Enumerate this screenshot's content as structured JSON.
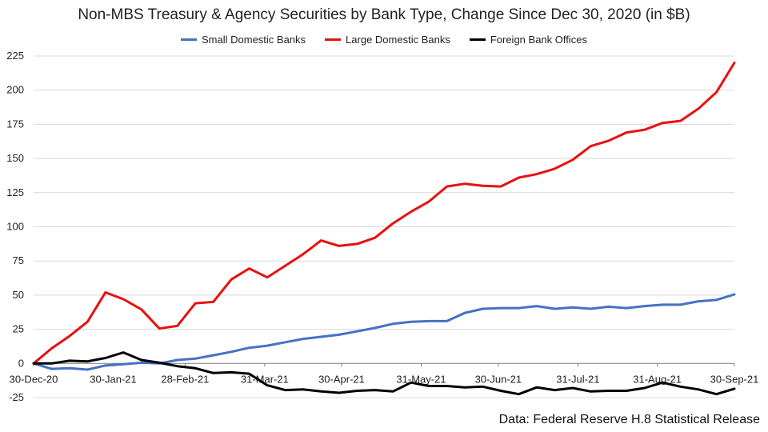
{
  "chart_data": {
    "type": "line",
    "title": "Non-MBS Treasury & Agency Securities by Bank Type, Change Since Dec 30, 2020 (in $B)",
    "xlabel": "",
    "ylabel": "",
    "ylim": [
      -25,
      225
    ],
    "yticks": [
      -25,
      0,
      25,
      50,
      75,
      100,
      125,
      150,
      175,
      200,
      225
    ],
    "x_tick_labels": [
      "30-Dec-20",
      "30-Jan-21",
      "28-Feb-21",
      "31-Mar-21",
      "30-Apr-21",
      "31-May-21",
      "30-Jun-21",
      "31-Jul-21",
      "31-Aug-21",
      "30-Sep-21"
    ],
    "x_tick_index": [
      0,
      4.43,
      8.43,
      12.86,
      17.14,
      21.57,
      25.86,
      30.29,
      34.71,
      39
    ],
    "n_points": 40,
    "grid": true,
    "legend_position": "top-center",
    "source": "Data: Federal Reserve H.8 Statistical Release",
    "series": [
      {
        "name": "Small Domestic Banks",
        "color": "#4472C4",
        "values": [
          0,
          -4,
          -3.5,
          -4.5,
          -1.5,
          -0.5,
          0.5,
          0,
          2.5,
          3.5,
          6,
          8.5,
          11.5,
          13,
          15.5,
          18,
          19.5,
          21,
          23.5,
          26,
          29,
          30.5,
          31,
          31,
          37,
          40,
          40.5,
          40.5,
          42,
          40,
          41,
          40,
          41.5,
          40.5,
          42,
          43,
          43,
          45.5,
          46.5,
          50.5
        ]
      },
      {
        "name": "Large Domestic Banks",
        "color": "#E8100F",
        "values": [
          0,
          11,
          20,
          30.5,
          52,
          47,
          39.5,
          25.5,
          27.5,
          44,
          45,
          61.5,
          69.5,
          63,
          71.5,
          80,
          90,
          86,
          87.5,
          92,
          102.5,
          111,
          118.5,
          129.5,
          131.5,
          130,
          129.5,
          136,
          138.5,
          142.5,
          149,
          159,
          163,
          169,
          171,
          176,
          177.5,
          186.5,
          198.5,
          220
        ]
      },
      {
        "name": "Foreign Bank Offices",
        "color": "#000000",
        "values": [
          0,
          0,
          2,
          1.5,
          4,
          8,
          2.5,
          0.5,
          -2,
          -3.5,
          -7,
          -6.5,
          -7.5,
          -16,
          -19.5,
          -19,
          -20.5,
          -21.5,
          -20,
          -19.5,
          -20.5,
          -14,
          -16.5,
          -16.5,
          -17.5,
          -17,
          -20,
          -22.5,
          -17.5,
          -19.5,
          -18,
          -20.5,
          -20,
          -20,
          -18,
          -14,
          -17,
          -19,
          -22.5,
          -18.5
        ]
      }
    ]
  }
}
